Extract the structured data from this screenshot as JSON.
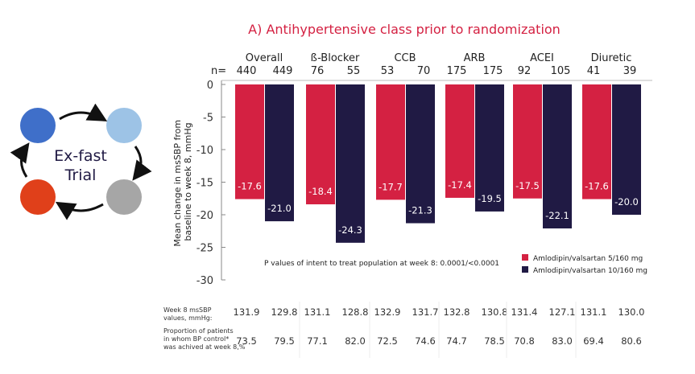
{
  "logo": {
    "text_line1": "Ex-fast",
    "text_line2": "Trial",
    "colors": [
      "#3f6fc9",
      "#9dc3e6",
      "#e0401a",
      "#a6a6a6"
    ]
  },
  "chart_data": {
    "type": "bar",
    "title": "A)  Antihypertensive class prior to randomization",
    "ylabel": "Mean change in msSBP from baseline to week 8, mmHg",
    "ylim": [
      -30,
      0
    ],
    "yticks": [
      0,
      -5,
      -10,
      -15,
      -20,
      -25,
      -30
    ],
    "n_prefix": "n=",
    "categories": [
      "Overall",
      "ß-Blocker",
      "CCB",
      "ARB",
      "ACEI",
      "Diuretic"
    ],
    "series": [
      {
        "name": "Amlodipin/valsartan  5/160 mg",
        "color": "#d42142",
        "values": [
          -17.6,
          -18.4,
          -17.7,
          -17.4,
          -17.5,
          -17.6
        ],
        "n": [
          440,
          76,
          53,
          175,
          92,
          41
        ],
        "week8_mssbp": [
          "131.9",
          "131.1",
          "132.9",
          "132.8",
          "131.4",
          "131.1"
        ],
        "bp_control": [
          "73.5",
          "77.1",
          "72.5",
          "74.7",
          "70.8",
          "69.4"
        ]
      },
      {
        "name": "Amlodipin/valsartan  10/160 mg",
        "color": "#201a44",
        "values": [
          -21.0,
          -24.3,
          -21.3,
          -19.5,
          -22.1,
          -20.0
        ],
        "n": [
          449,
          55,
          70,
          175,
          105,
          39
        ],
        "week8_mssbp": [
          "129.8",
          "128.8",
          "131.7",
          "130.8",
          "127.1",
          "130.0"
        ],
        "bp_control": [
          "79.5",
          "82.0",
          "74.6",
          "78.5",
          "83.0",
          "80.6"
        ]
      }
    ],
    "annotation": "P values of intent to treat population at week 8: 0.0001/<0.0001",
    "legend_position": "bottom-right",
    "table_rows": [
      {
        "label": [
          "Week 8 msSBP",
          "values, mmHg:"
        ],
        "key": "week8_mssbp"
      },
      {
        "label": [
          "Proportion of patients",
          "in whom BP control*",
          "was achived at week 8,%"
        ],
        "key": "bp_control"
      }
    ]
  }
}
